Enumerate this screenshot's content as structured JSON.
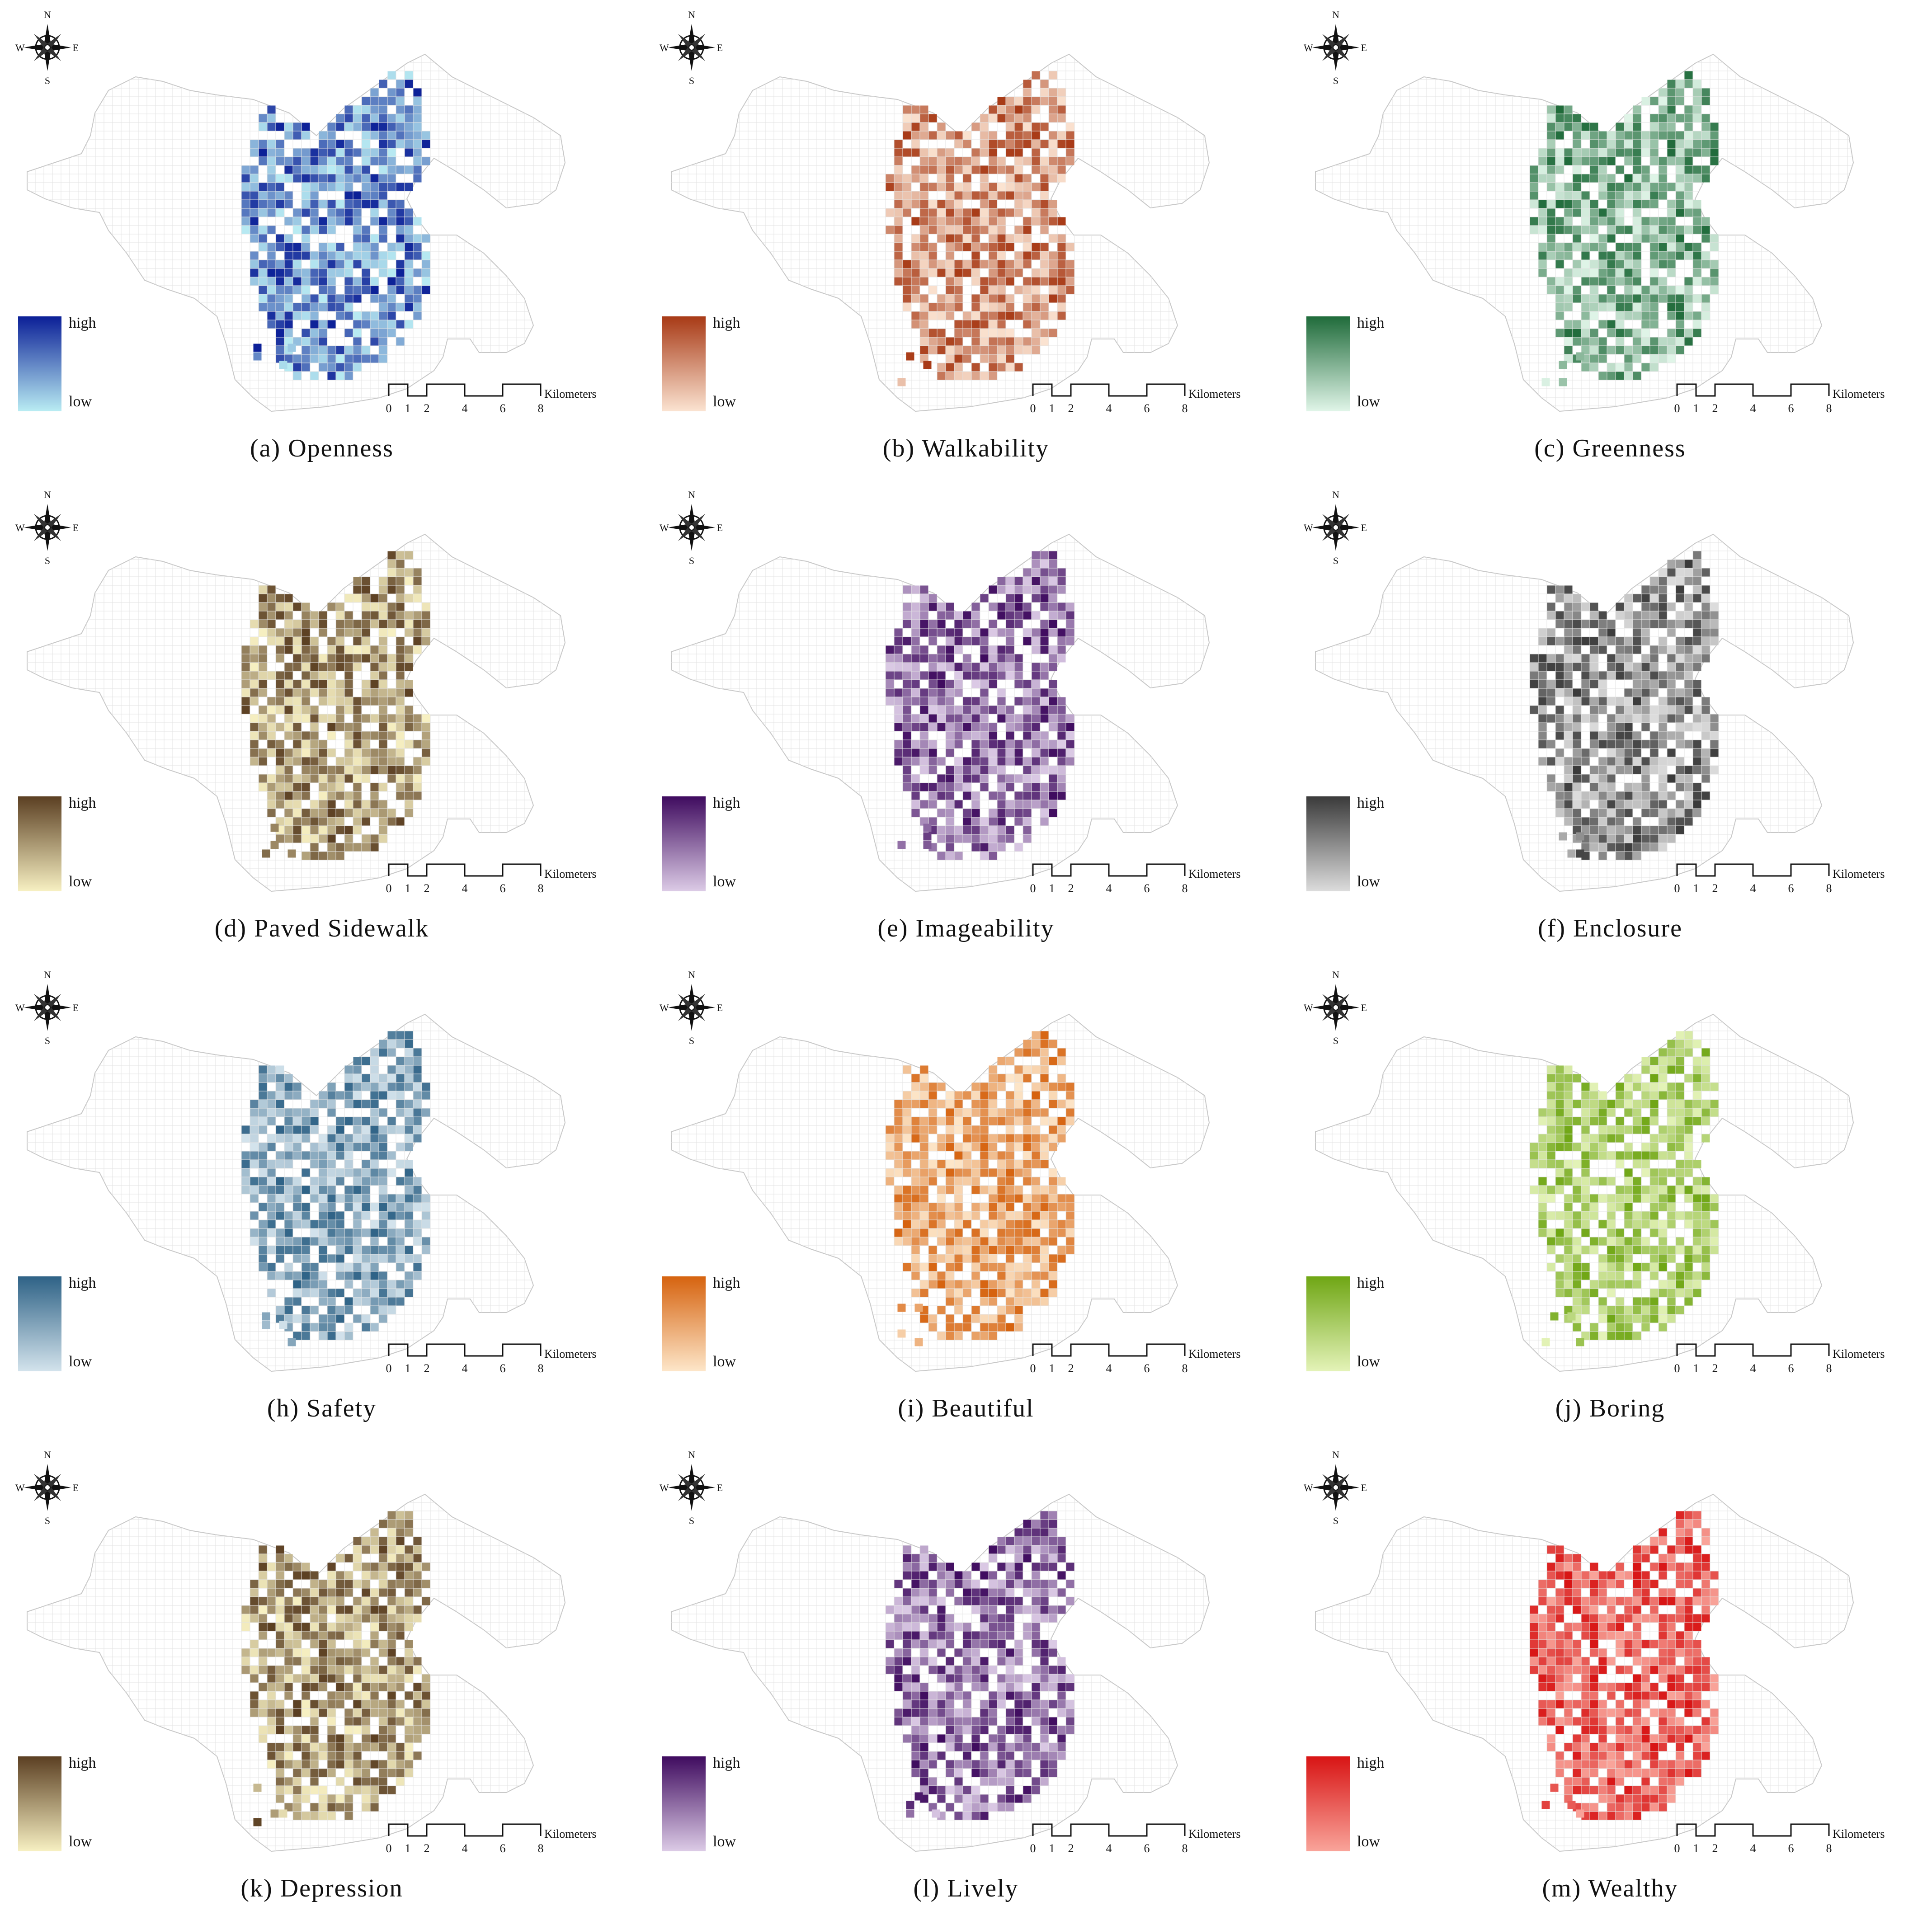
{
  "compass": {
    "north": "N",
    "south": "S",
    "east": "E",
    "west": "W"
  },
  "legend": {
    "high": "high",
    "low": "low"
  },
  "scale": {
    "ticks": [
      "0",
      "1",
      "2",
      "4",
      "6",
      "8"
    ],
    "unit": "Kilometers"
  },
  "panels": [
    {
      "caption": "(a) Openness",
      "theme": "openness",
      "colors": {
        "low": "#b9ecf3",
        "high": "#0b1f97"
      }
    },
    {
      "caption": "(b) Walkability",
      "theme": "walkability",
      "colors": {
        "low": "#fbe3d1",
        "high": "#a83a16"
      }
    },
    {
      "caption": "(c) Greenness",
      "theme": "greenness",
      "colors": {
        "low": "#e0f5e8",
        "high": "#1f6b3a"
      }
    },
    {
      "caption": "(d) Paved Sidewalk",
      "theme": "paved",
      "colors": {
        "low": "#f7f0c2",
        "high": "#5b3f22"
      }
    },
    {
      "caption": "(e) Imageability",
      "theme": "imageability",
      "colors": {
        "low": "#dccbe6",
        "high": "#3f0b5f"
      }
    },
    {
      "caption": "(f) Enclosure",
      "theme": "enclosure",
      "colors": {
        "low": "#dcdcdc",
        "high": "#3a3a3a"
      }
    },
    {
      "caption": "(h) Safety",
      "theme": "safety",
      "colors": {
        "low": "#d3e3ec",
        "high": "#2e6286"
      }
    },
    {
      "caption": "(i) Beautiful",
      "theme": "beautiful",
      "colors": {
        "low": "#fde6c9",
        "high": "#d6630f"
      }
    },
    {
      "caption": "(j) Boring",
      "theme": "boring",
      "colors": {
        "low": "#e4f3b8",
        "high": "#6fa614"
      }
    },
    {
      "caption": "(k) Depression",
      "theme": "depression",
      "colors": {
        "low": "#f7f0c2",
        "high": "#5b3f22"
      }
    },
    {
      "caption": "(l) Lively",
      "theme": "lively",
      "colors": {
        "low": "#dccbe6",
        "high": "#3f0b5f"
      }
    },
    {
      "caption": "(m) Wealthy",
      "theme": "wealthy",
      "colors": {
        "low": "#f9a49a",
        "high": "#d81414"
      }
    }
  ]
}
